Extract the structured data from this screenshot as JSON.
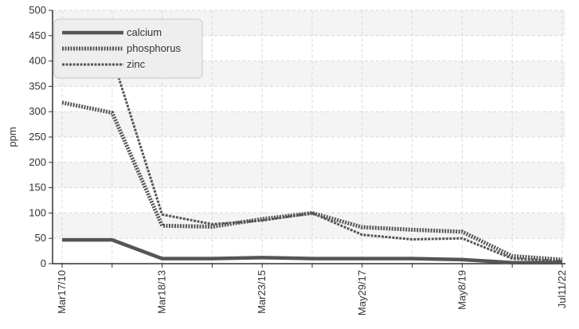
{
  "chart_data": {
    "type": "line",
    "title": "",
    "xlabel": "",
    "ylabel": "ppm",
    "ylim": [
      0,
      500
    ],
    "y_ticks": [
      0,
      50,
      100,
      150,
      200,
      250,
      300,
      350,
      400,
      450,
      500
    ],
    "x_tick_labels": [
      "Mar17/10",
      "Mar18/13",
      "Mar23/15",
      "May29/17",
      "May8/19",
      "Jul11/22"
    ],
    "grid": true,
    "legend_position": "top-left",
    "series": [
      {
        "name": "calcium",
        "style": "solid",
        "values": [
          47,
          47,
          10,
          10,
          12,
          10,
          10,
          10,
          8,
          2,
          2
        ]
      },
      {
        "name": "phosphorus",
        "style": "dashed-heavy",
        "values": [
          318,
          298,
          75,
          73,
          88,
          100,
          72,
          67,
          63,
          15,
          8
        ]
      },
      {
        "name": "zinc",
        "style": "dashed-light",
        "values": [
          410,
          408,
          97,
          78,
          85,
          100,
          57,
          48,
          50,
          10,
          5
        ]
      }
    ],
    "colors": {
      "line": "#555555",
      "grid": "#d9d9d9",
      "band": "#f4f4f4",
      "axis": "#333333"
    }
  }
}
